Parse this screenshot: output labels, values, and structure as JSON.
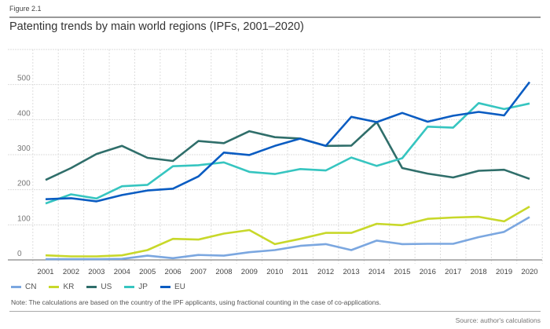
{
  "figure_label": "Figure 2.1",
  "note": "Note: The calculations are based on the country of the IPF applicants, using fractional counting in the case of co-applications.",
  "source": "Source: author's calculations",
  "chart_data": {
    "type": "line",
    "title": "Patenting trends by main world regions (IPFs, 2001–2020)",
    "xlabel": "",
    "ylabel": "",
    "x": [
      "2001",
      "2002",
      "2003",
      "2004",
      "2005",
      "2006",
      "2007",
      "2008",
      "2009",
      "2010",
      "2011",
      "2012",
      "2013",
      "2014",
      "2015",
      "2016",
      "2017",
      "2018",
      "2019",
      "2020"
    ],
    "ylim": [
      0,
      600
    ],
    "yticks": [
      "0",
      "100",
      "200",
      "300",
      "400",
      "500"
    ],
    "grid": true,
    "legend": "bottom-left",
    "series": [
      {
        "name": "CN",
        "color": "#7ba7e0",
        "values": [
          2,
          2,
          2,
          3,
          12,
          5,
          14,
          12,
          22,
          28,
          40,
          45,
          28,
          55,
          45,
          46,
          46,
          65,
          80,
          122
        ]
      },
      {
        "name": "KR",
        "color": "#c8d82a",
        "values": [
          13,
          10,
          10,
          13,
          28,
          60,
          58,
          75,
          85,
          45,
          60,
          77,
          77,
          103,
          99,
          117,
          121,
          123,
          110,
          152
        ]
      },
      {
        "name": "US",
        "color": "#2f6e6a",
        "values": [
          228,
          262,
          302,
          325,
          291,
          282,
          339,
          333,
          367,
          350,
          346,
          325,
          326,
          393,
          262,
          246,
          235,
          254,
          257,
          231
        ]
      },
      {
        "name": "JP",
        "color": "#36c5c0",
        "values": [
          161,
          187,
          175,
          210,
          214,
          267,
          270,
          278,
          251,
          245,
          259,
          255,
          292,
          268,
          290,
          380,
          377,
          447,
          430,
          446
        ]
      },
      {
        "name": "EU",
        "color": "#0a5cc2",
        "values": [
          173,
          176,
          167,
          185,
          198,
          203,
          238,
          306,
          299,
          325,
          346,
          325,
          408,
          393,
          419,
          394,
          411,
          422,
          412,
          507
        ]
      }
    ]
  }
}
